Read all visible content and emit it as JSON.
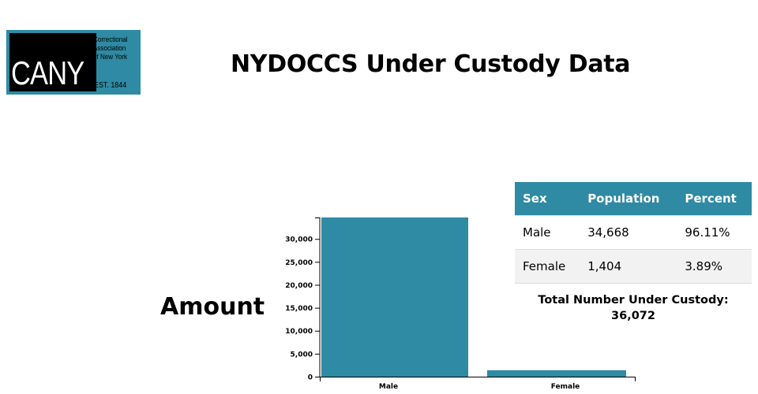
{
  "logo": {
    "wordmark": "CANY",
    "subtitle_lines": [
      "Correctional",
      "Association",
      "of New York"
    ],
    "established": "EST. 1844",
    "brand_color": "#2f8aa3"
  },
  "page_title": "NYDOCCS Under Custody Data",
  "chart_data": {
    "type": "bar",
    "title": "NYDOCCS Under Custody Data",
    "ylabel": "Amount",
    "xlabel": "",
    "categories": [
      "Male",
      "Female"
    ],
    "values": [
      34668,
      1404
    ],
    "ylim": [
      0,
      34668
    ],
    "yticks": [
      0,
      5000,
      10000,
      15000,
      20000,
      25000,
      30000
    ],
    "ytick_labels": [
      "0",
      "5,000",
      "10,000",
      "15,000",
      "20,000",
      "25,000",
      "30,000"
    ],
    "bar_color": "#2f8aa3",
    "grid": false
  },
  "table": {
    "headers": [
      "Sex",
      "Population",
      "Percent"
    ],
    "rows": [
      [
        "Male",
        "34,668",
        "96.11%"
      ],
      [
        "Female",
        "1,404",
        "3.89%"
      ]
    ]
  },
  "total": {
    "label": "Total Number Under Custody:",
    "value": "36,072"
  }
}
